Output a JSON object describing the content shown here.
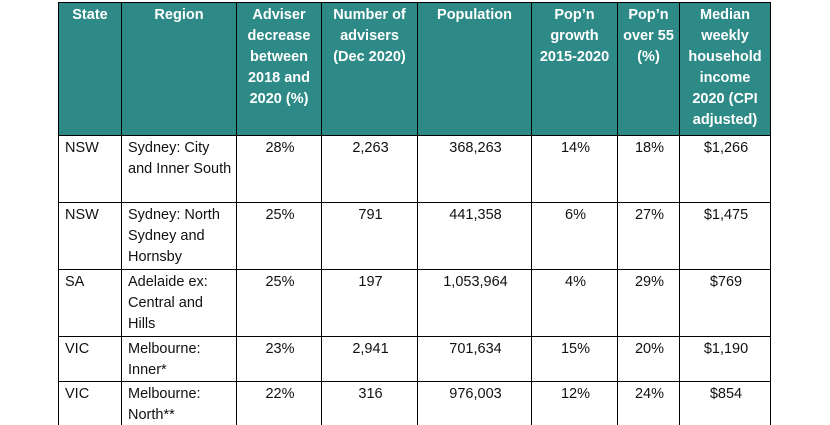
{
  "table": {
    "headers": [
      "State",
      "Region",
      "Adviser decrease between 2018 and 2020 (%)",
      "Number of advisers (Dec 2020)",
      "Population",
      "Pop’n growth 2015-2020",
      "Pop’n over 55 (%)",
      "Median weekly household income 2020 (CPI adjusted)"
    ],
    "rows": [
      {
        "state": "NSW",
        "region": "Sydney: City and Inner South",
        "adviser_decrease": "28%",
        "advisers": "2,263",
        "population": "368,263",
        "pop_growth": "14%",
        "pop_over_55": "18%",
        "median_income": "$1,266"
      },
      {
        "state": "NSW",
        "region": "Sydney: North Sydney and Hornsby",
        "adviser_decrease": "25%",
        "advisers": "791",
        "population": "441,358",
        "pop_growth": "6%",
        "pop_over_55": "27%",
        "median_income": "$1,475"
      },
      {
        "state": "SA",
        "region": "Adelaide ex: Central and Hills",
        "adviser_decrease": "25%",
        "advisers": "197",
        "population": "1,053,964",
        "pop_growth": "4%",
        "pop_over_55": "29%",
        "median_income": "$769"
      },
      {
        "state": "VIC",
        "region": "Melbourne: Inner*",
        "adviser_decrease": "23%",
        "advisers": "2,941",
        "population": "701,634",
        "pop_growth": "15%",
        "pop_over_55": "20%",
        "median_income": "$1,190"
      },
      {
        "state": "VIC",
        "region": "Melbourne: North**",
        "adviser_decrease": "22%",
        "advisers": "316",
        "population": "976,003",
        "pop_growth": "12%",
        "pop_over_55": "24%",
        "median_income": "$854"
      }
    ]
  },
  "colors": {
    "header_background": "#2e8a87",
    "header_text": "#ffffff",
    "border": "#000000"
  }
}
